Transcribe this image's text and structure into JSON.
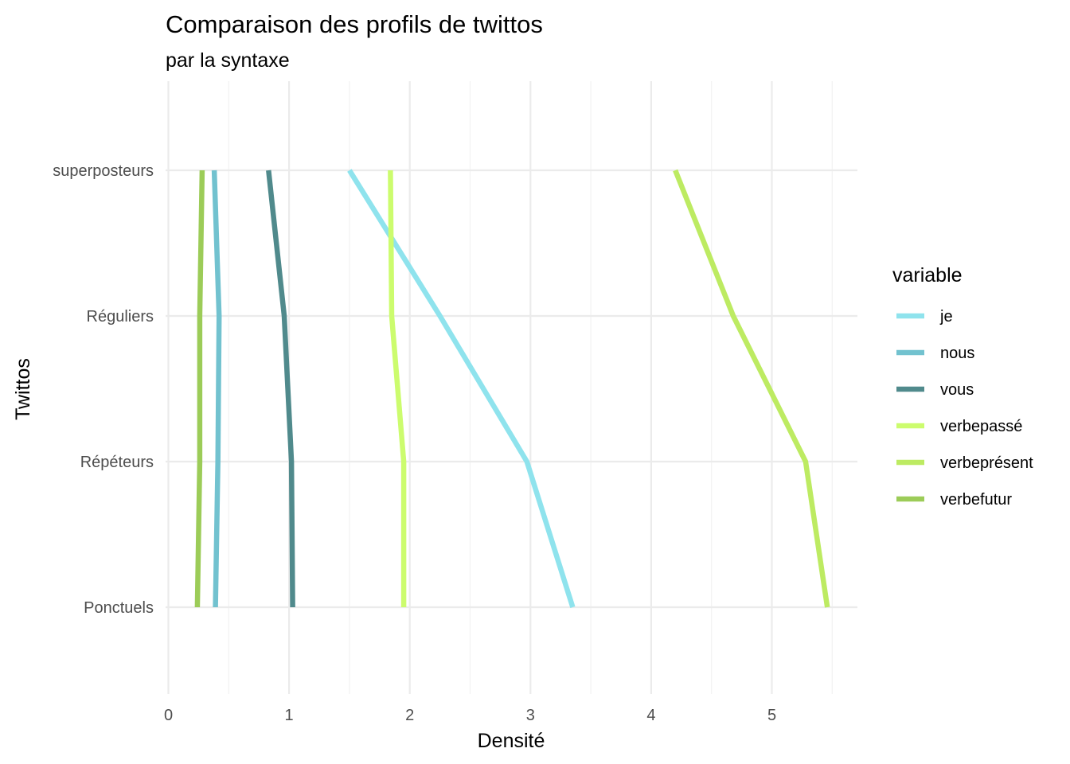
{
  "chart_data": {
    "type": "line",
    "title": "Comparaison des profils de twittos",
    "subtitle": "par la syntaxe",
    "xlabel": "Densité",
    "ylabel": "Twittos",
    "xlim": [
      0,
      5.7
    ],
    "x_ticks": [
      0,
      1,
      2,
      3,
      4,
      5
    ],
    "categories": [
      "Ponctuels",
      "Répéteurs",
      "Réguliers",
      "superposteurs"
    ],
    "grid": true,
    "legend": {
      "title": "variable",
      "position": "right"
    },
    "series": [
      {
        "name": "je",
        "color": "#8fe3ed",
        "values": [
          3.35,
          2.97,
          2.25,
          1.5
        ]
      },
      {
        "name": "nous",
        "color": "#72c2cf",
        "values": [
          0.39,
          0.41,
          0.42,
          0.38
        ]
      },
      {
        "name": "vous",
        "color": "#508a8c",
        "values": [
          1.03,
          1.02,
          0.96,
          0.83
        ]
      },
      {
        "name": "verbepassé",
        "color": "#ccfc6e",
        "values": [
          1.95,
          1.95,
          1.85,
          1.84
        ]
      },
      {
        "name": "verbeprésent",
        "color": "#bdeb62",
        "values": [
          5.46,
          5.28,
          4.68,
          4.2
        ]
      },
      {
        "name": "verbefutur",
        "color": "#9ccc58",
        "values": [
          0.24,
          0.26,
          0.26,
          0.28
        ]
      }
    ]
  }
}
